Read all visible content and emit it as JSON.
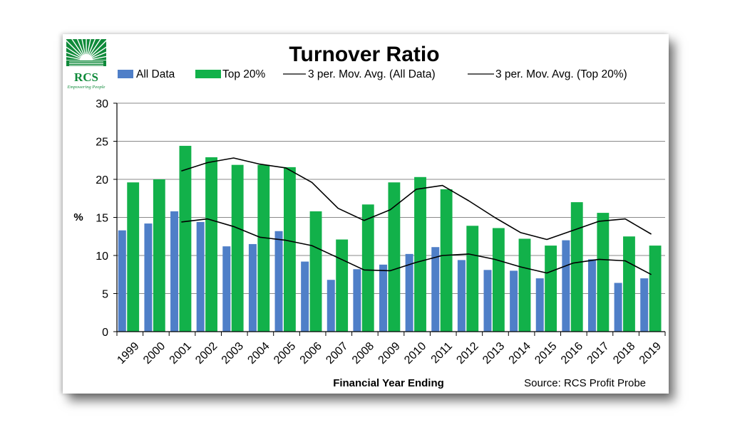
{
  "logo": {
    "text": "RCS",
    "tagline": "Empowering People",
    "color": "#0f8a3a"
  },
  "source": "Source: RCS Profit Probe",
  "chart_data": {
    "type": "bar",
    "title": "Turnover Ratio",
    "xlabel": "Financial Year Ending",
    "ylabel": "%",
    "ylim": [
      0,
      30
    ],
    "yticks": [
      0,
      5,
      10,
      15,
      20,
      25,
      30
    ],
    "grid": true,
    "legend_position": "top",
    "categories": [
      "1999",
      "2000",
      "2001",
      "2002",
      "2003",
      "2004",
      "2005",
      "2006",
      "2007",
      "2008",
      "2009",
      "2010",
      "2011",
      "2012",
      "2013",
      "2014",
      "2015",
      "2016",
      "2017",
      "2018",
      "2019"
    ],
    "series": [
      {
        "name": "All Data",
        "kind": "bar",
        "color": "#4f7fc8",
        "values": [
          13.3,
          14.2,
          15.8,
          14.4,
          11.2,
          11.5,
          13.2,
          9.2,
          6.8,
          8.2,
          8.8,
          10.2,
          11.1,
          9.4,
          8.1,
          8.0,
          7.0,
          12.0,
          9.5,
          6.4,
          7.0
        ]
      },
      {
        "name": "Top 20%",
        "kind": "bar",
        "color": "#12b14a",
        "values": [
          19.6,
          20.0,
          24.4,
          22.9,
          21.9,
          21.9,
          21.6,
          15.8,
          12.1,
          16.7,
          19.6,
          20.3,
          18.7,
          13.9,
          13.6,
          12.2,
          11.3,
          17.0,
          15.6,
          12.5,
          11.3
        ]
      },
      {
        "name": "3 per. Mov. Avg. (All Data)",
        "kind": "line",
        "color": "#000000",
        "values": [
          null,
          null,
          14.4,
          14.8,
          13.8,
          12.4,
          12.0,
          11.3,
          9.7,
          8.1,
          8.0,
          9.1,
          10.0,
          10.2,
          9.5,
          8.5,
          7.7,
          9.0,
          9.5,
          9.3,
          7.5
        ]
      },
      {
        "name": "3 per. Mov. Avg. (Top 20%)",
        "kind": "line",
        "color": "#000000",
        "values": [
          null,
          null,
          21.1,
          22.2,
          22.8,
          22.0,
          21.5,
          19.6,
          16.2,
          14.6,
          16.0,
          18.7,
          19.2,
          17.2,
          15.0,
          13.0,
          12.1,
          13.3,
          14.5,
          14.8,
          12.8
        ]
      }
    ]
  }
}
